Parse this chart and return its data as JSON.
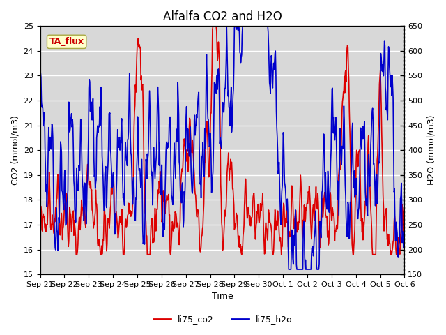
{
  "title": "Alfalfa CO2 and H2O",
  "xlabel": "Time",
  "ylabel_left": "CO2 (mmol/m3)",
  "ylabel_right": "H2O (mmol/m3)",
  "ylim_left": [
    15.0,
    25.0
  ],
  "ylim_right": [
    150,
    650
  ],
  "yticks_left": [
    15.0,
    16.0,
    17.0,
    18.0,
    19.0,
    20.0,
    21.0,
    22.0,
    23.0,
    24.0,
    25.0
  ],
  "yticks_right": [
    150,
    200,
    250,
    300,
    350,
    400,
    450,
    500,
    550,
    600,
    650
  ],
  "xtick_labels": [
    "Sep 21",
    "Sep 22",
    "Sep 23",
    "Sep 24",
    "Sep 25",
    "Sep 26",
    "Sep 27",
    "Sep 28",
    "Sep 29",
    "Sep 30",
    "Oct 1",
    "Oct 2",
    "Oct 3",
    "Oct 4",
    "Oct 5",
    "Oct 6"
  ],
  "legend_labels": [
    "li75_co2",
    "li75_h2o"
  ],
  "color_co2": "#dd0000",
  "color_h2o": "#0000cc",
  "annotation_text": "TA_flux",
  "annotation_color": "#cc0000",
  "annotation_bg": "#ffffcc",
  "annotation_edge": "#aaaa44",
  "plot_bg": "#d8d8d8",
  "grid_color": "#ffffff",
  "linewidth": 1.2,
  "title_fontsize": 12,
  "axis_fontsize": 9,
  "tick_fontsize": 8
}
